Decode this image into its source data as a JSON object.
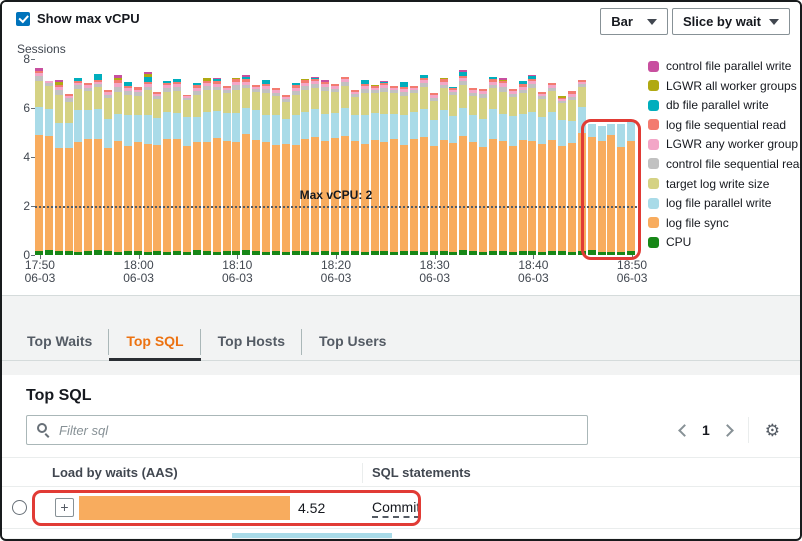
{
  "header": {
    "show_max_vcpu_label": "Show max vCPU",
    "checkbox_checked": true,
    "chart_type": "Bar",
    "slice_by": "Slice by wait"
  },
  "chart_data": {
    "type": "bar",
    "stacked": true,
    "ylabel": "Sessions",
    "ylim": [
      0,
      8
    ],
    "y_ticks": [
      0,
      2,
      4,
      6,
      8
    ],
    "grid": false,
    "legend_position": "right",
    "max_vcpu": {
      "label": "Max vCPU: 2",
      "value": 2
    },
    "x_ticks": [
      {
        "time": "17:50",
        "date": "06-03"
      },
      {
        "time": "18:00",
        "date": "06-03"
      },
      {
        "time": "18:10",
        "date": "06-03"
      },
      {
        "time": "18:20",
        "date": "06-03"
      },
      {
        "time": "18:30",
        "date": "06-03"
      },
      {
        "time": "18:40",
        "date": "06-03"
      },
      {
        "time": "18:50",
        "date": "06-03"
      }
    ],
    "series_bottom_to_top": [
      "CPU",
      "log file sync",
      "log file parallel write",
      "target log write size",
      "control file sequential read",
      "LGWR any worker group",
      "log file sequential read",
      "db file parallel write",
      "LGWR all worker groups",
      "control file parallel write"
    ],
    "series_colors": [
      "#178717",
      "#F8AC5E",
      "#A9DBE8",
      "#D5D284",
      "#C1C1C1",
      "#F3A6C7",
      "#F37B70",
      "#00AEBD",
      "#B0A912",
      "#C84F9F"
    ],
    "legend_top_to_bottom": [
      {
        "label": "control file parallel write",
        "color": "#C84F9F"
      },
      {
        "label": "LGWR all worker groups",
        "color": "#B0A912"
      },
      {
        "label": "db file parallel write",
        "color": "#00AEBD"
      },
      {
        "label": "log file sequential read",
        "color": "#F37B70"
      },
      {
        "label": "LGWR any worker group",
        "color": "#F3A6C7"
      },
      {
        "label": "control file sequential read",
        "color": "#C1C1C1"
      },
      {
        "label": "target log write size",
        "color": "#D5D284"
      },
      {
        "label": "log file parallel write",
        "color": "#A9DBE8"
      },
      {
        "label": "log file sync",
        "color": "#F8AC5E"
      },
      {
        "label": "CPU",
        "color": "#178717"
      }
    ],
    "bars": [
      [
        0.15,
        4.75,
        1.15,
        1.05,
        0.2,
        0.12,
        0.1,
        0,
        0,
        0.12
      ],
      [
        0.2,
        4.65,
        1.1,
        0.95,
        0.12,
        0.08,
        0,
        0,
        0,
        0
      ],
      [
        0.15,
        4.2,
        1.05,
        1.15,
        0.18,
        0.12,
        0.1,
        0,
        0.1,
        0.08
      ],
      [
        0.15,
        4.2,
        1.05,
        0.85,
        0.15,
        0.1,
        0.08,
        0,
        0,
        0
      ],
      [
        0.12,
        4.5,
        1.3,
        0.85,
        0.15,
        0.1,
        0.08,
        0.12,
        0,
        0
      ],
      [
        0.15,
        4.6,
        1.15,
        0.8,
        0.12,
        0.1,
        0.08,
        0,
        0,
        0
      ],
      [
        0.2,
        4.55,
        1.2,
        0.9,
        0.12,
        0.1,
        0.08,
        0.25,
        0,
        0
      ],
      [
        0.15,
        4.2,
        1.2,
        0.85,
        0.15,
        0.1,
        0.08,
        0,
        0,
        0
      ],
      [
        0.12,
        4.55,
        1.1,
        0.9,
        0.2,
        0.15,
        0.1,
        0,
        0.1,
        0.1
      ],
      [
        0.15,
        4.3,
        1.25,
        0.85,
        0.15,
        0.12,
        0.08,
        0.15,
        0,
        0
      ],
      [
        0.15,
        4.45,
        1.1,
        0.8,
        0.15,
        0.1,
        0.1,
        0,
        0,
        0
      ],
      [
        0.12,
        4.4,
        1.2,
        1.0,
        0.15,
        0.12,
        0.08,
        0.2,
        0.1,
        0.1
      ],
      [
        0.15,
        4.35,
        1.1,
        0.75,
        0.12,
        0.1,
        0.08,
        0,
        0,
        0
      ],
      [
        0.12,
        4.6,
        1.1,
        0.85,
        0.15,
        0.1,
        0.08,
        0.1,
        0,
        0
      ],
      [
        0.15,
        4.6,
        1.05,
        0.9,
        0.15,
        0.12,
        0.1,
        0.1,
        0,
        0
      ],
      [
        0.12,
        4.35,
        1.15,
        0.7,
        0.1,
        0.08,
        0.05,
        0,
        0,
        0
      ],
      [
        0.2,
        4.4,
        1.05,
        0.9,
        0.15,
        0.12,
        0.1,
        0.1,
        0,
        0
      ],
      [
        0.15,
        4.45,
        1.25,
        0.9,
        0.15,
        0.12,
        0.1,
        0,
        0.1,
        0
      ],
      [
        0.12,
        4.65,
        1.1,
        0.85,
        0.15,
        0.12,
        0.1,
        0.1,
        0,
        0.05
      ],
      [
        0.15,
        4.5,
        1.15,
        0.8,
        0.12,
        0.1,
        0.08,
        0,
        0,
        0
      ],
      [
        0.15,
        4.45,
        1.2,
        0.95,
        0.2,
        0.12,
        0.1,
        0,
        0.05,
        0
      ],
      [
        0.2,
        4.75,
        1.05,
        0.8,
        0.15,
        0.12,
        0.1,
        0.1,
        0,
        0.08
      ],
      [
        0.15,
        4.55,
        1.2,
        0.75,
        0.12,
        0.1,
        0.08,
        0,
        0,
        0
      ],
      [
        0.12,
        4.5,
        1.1,
        0.9,
        0.15,
        0.12,
        0.1,
        0.15,
        0,
        0
      ],
      [
        0.15,
        4.35,
        1.2,
        0.8,
        0.12,
        0.1,
        0.08,
        0,
        0,
        0
      ],
      [
        0.12,
        4.4,
        1.05,
        0.7,
        0.12,
        0.08,
        0.05,
        0,
        0,
        0
      ],
      [
        0.15,
        4.35,
        1.2,
        0.85,
        0.15,
        0.12,
        0.1,
        0.1,
        0,
        0
      ],
      [
        0.15,
        4.6,
        1.1,
        0.9,
        0.15,
        0.12,
        0.1,
        0,
        0.05,
        0
      ],
      [
        0.12,
        4.7,
        1.15,
        0.85,
        0.15,
        0.12,
        0.08,
        0.05,
        0,
        0.05
      ],
      [
        0.15,
        4.5,
        1.1,
        0.95,
        0.15,
        0.12,
        0.1,
        0,
        0,
        0.08
      ],
      [
        0.12,
        4.65,
        1.05,
        0.85,
        0.12,
        0.1,
        0.08,
        0,
        0,
        0
      ],
      [
        0.15,
        4.7,
        1.15,
        0.9,
        0.15,
        0.12,
        0.08,
        0,
        0,
        0
      ],
      [
        0.15,
        4.5,
        1.05,
        0.75,
        0.12,
        0.1,
        0.08,
        0,
        0,
        0
      ],
      [
        0.12,
        4.4,
        1.2,
        0.9,
        0.15,
        0.12,
        0.1,
        0.15,
        0,
        0
      ],
      [
        0.15,
        4.55,
        1.1,
        0.8,
        0.12,
        0.1,
        0.08,
        0,
        0.05,
        0
      ],
      [
        0.15,
        4.45,
        1.15,
        0.9,
        0.15,
        0.12,
        0.1,
        0.05,
        0,
        0.05
      ],
      [
        0.12,
        4.6,
        1.05,
        0.85,
        0.12,
        0.1,
        0.08,
        0,
        0,
        0
      ],
      [
        0.15,
        4.35,
        1.2,
        0.8,
        0.15,
        0.12,
        0.1,
        0.2,
        0,
        0
      ],
      [
        0.15,
        4.6,
        1.1,
        0.75,
        0.12,
        0.1,
        0.08,
        0,
        0,
        0
      ],
      [
        0.12,
        4.7,
        1.15,
        0.9,
        0.15,
        0.12,
        0.1,
        0.1,
        0,
        0
      ],
      [
        0.15,
        4.3,
        1.05,
        0.8,
        0.12,
        0.1,
        0.08,
        0,
        0,
        0
      ],
      [
        0.15,
        4.55,
        1.2,
        0.9,
        0.15,
        0.12,
        0.1,
        0,
        0.05,
        0
      ],
      [
        0.12,
        4.45,
        1.1,
        0.85,
        0.12,
        0.1,
        0.08,
        0.05,
        0,
        0
      ],
      [
        0.2,
        4.65,
        1.15,
        0.95,
        0.15,
        0.12,
        0.1,
        0.15,
        0,
        0.08
      ],
      [
        0.15,
        4.45,
        1.1,
        0.8,
        0.12,
        0.1,
        0.08,
        0,
        0,
        0
      ],
      [
        0.12,
        4.3,
        1.15,
        0.85,
        0.15,
        0.12,
        0.1,
        0,
        0,
        0
      ],
      [
        0.15,
        4.6,
        1.2,
        0.85,
        0.15,
        0.12,
        0.1,
        0.1,
        0,
        0
      ],
      [
        0.15,
        4.5,
        1.1,
        0.9,
        0.2,
        0.15,
        0.1,
        0,
        0.05,
        0.05
      ],
      [
        0.12,
        4.35,
        1.2,
        0.8,
        0.12,
        0.1,
        0.08,
        0,
        0,
        0
      ],
      [
        0.15,
        4.55,
        1.05,
        0.85,
        0.15,
        0.12,
        0.1,
        0.15,
        0,
        0
      ],
      [
        0.15,
        4.5,
        1.2,
        0.95,
        0.18,
        0.12,
        0.1,
        0.1,
        0,
        0.05
      ],
      [
        0.12,
        4.4,
        1.1,
        0.75,
        0.12,
        0.1,
        0.08,
        0,
        0,
        0
      ],
      [
        0.15,
        4.55,
        1.15,
        0.85,
        0.12,
        0.1,
        0.08,
        0,
        0,
        0
      ],
      [
        0.15,
        4.3,
        1.05,
        0.7,
        0.1,
        0.08,
        0.05,
        0,
        0.05,
        0
      ],
      [
        0.12,
        4.45,
        0.9,
        0.85,
        0.15,
        0.12,
        0.1,
        0,
        0,
        0
      ],
      [
        0.15,
        4.85,
        1.05,
        0.8,
        0.12,
        0.1,
        0.08,
        0,
        0,
        0
      ],
      [
        0.2,
        4.6,
        0.55,
        0,
        0,
        0,
        0,
        0,
        0,
        0
      ],
      [
        0.12,
        4.55,
        0.6,
        0,
        0,
        0,
        0,
        0,
        0,
        0
      ],
      [
        0.12,
        4.8,
        0.45,
        0,
        0,
        0,
        0,
        0,
        0,
        0
      ],
      [
        0.12,
        4.3,
        0.95,
        0,
        0,
        0,
        0,
        0,
        0,
        0
      ],
      [
        0.15,
        4.5,
        0.8,
        0,
        0,
        0,
        0,
        0,
        0,
        0
      ]
    ],
    "highlighted_bar_range": [
      56,
      60
    ]
  },
  "tabs": [
    {
      "label": "Top Waits",
      "active": false
    },
    {
      "label": "Top SQL",
      "active": true
    },
    {
      "label": "Top Hosts",
      "active": false
    },
    {
      "label": "Top Users",
      "active": false
    }
  ],
  "panel": {
    "title": "Top SQL",
    "filter_placeholder": "Filter sql",
    "pagination": {
      "page": "1"
    },
    "table": {
      "columns": [
        "Load by waits (AAS)",
        "SQL statements"
      ],
      "rows": [
        {
          "load_aas": "4.52",
          "sql": "Commit",
          "bar_color": "#F8AC5E",
          "selected": false
        }
      ],
      "next_row_partial_bar_color": "#A9DBE8"
    }
  },
  "colors": {
    "checkbox_blue": "#0073BB",
    "active_tab_orange": "#EC7211",
    "annotation_red": "#E13B35",
    "page_background": "#F2F3F3"
  }
}
